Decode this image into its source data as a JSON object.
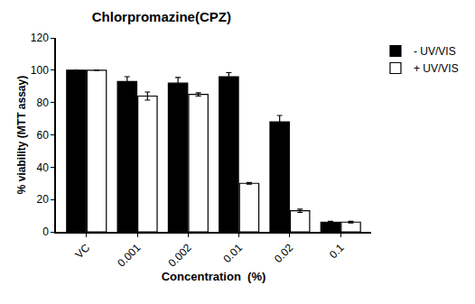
{
  "chart_data": {
    "type": "bar",
    "title": "Chlorpromazine(CPZ)",
    "x_label": "Concentration  (%)",
    "y_label": "% viability (MTT assay)",
    "categories": [
      "VC",
      "0.001",
      "0.002",
      "0.01",
      "0.02",
      "0.1"
    ],
    "series": [
      {
        "name": "- UV/VIS",
        "color": "#000000",
        "values": [
          100,
          93,
          92,
          96,
          68,
          6
        ],
        "errors": [
          0,
          3,
          3.5,
          2.5,
          4,
          0.5
        ]
      },
      {
        "name": "+ UV/VIS",
        "color": "#ffffff",
        "values": [
          100,
          84,
          85,
          30,
          13,
          6
        ],
        "errors": [
          0,
          2.5,
          1,
          0.5,
          1,
          0.5
        ]
      }
    ],
    "ylim": [
      0,
      120
    ],
    "yticks": [
      0,
      20,
      40,
      60,
      80,
      100,
      120
    ],
    "grid": false,
    "legend": "right"
  }
}
